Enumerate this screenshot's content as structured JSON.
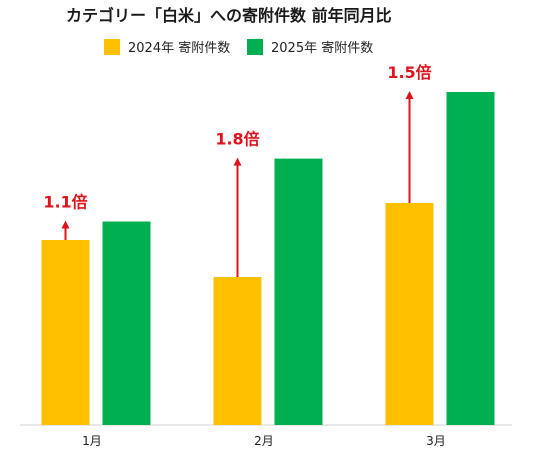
{
  "chart_data": {
    "type": "bar",
    "title": "カテゴリー「白米」への寄附件数 前年同月比",
    "categories": [
      "1月",
      "2月",
      "3月"
    ],
    "series": [
      {
        "name": "2024年 寄附件数",
        "color": "#FFC000",
        "values": [
          100,
          80,
          120
        ]
      },
      {
        "name": "2025年 寄附件数",
        "color": "#00B050",
        "values": [
          110,
          144,
          180
        ]
      }
    ],
    "annotations": [
      {
        "category": "1月",
        "label": "1.1倍",
        "from_series": 0,
        "to_series": 1
      },
      {
        "category": "2月",
        "label": "1.8倍",
        "from_series": 0,
        "to_series": 1
      },
      {
        "category": "3月",
        "label": "1.5倍",
        "from_series": 0,
        "to_series": 1
      }
    ],
    "annotation_color": "#E0121B",
    "ylim": [
      0,
      180
    ],
    "grid": false,
    "legend_position": "top"
  }
}
